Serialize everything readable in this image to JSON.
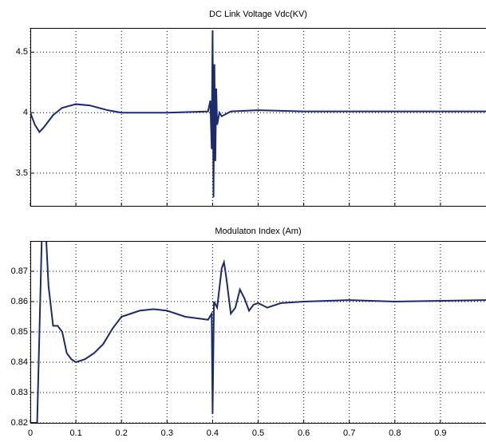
{
  "chart_data": [
    {
      "type": "line",
      "title": "DC Link Voltage Vdc(KV)",
      "x": [
        0,
        0.01,
        0.02,
        0.03,
        0.05,
        0.07,
        0.1,
        0.13,
        0.17,
        0.2,
        0.3,
        0.39,
        0.395,
        0.398,
        0.4,
        0.402,
        0.404,
        0.406,
        0.408,
        0.41,
        0.415,
        0.42,
        0.44,
        0.5,
        0.6,
        1.0
      ],
      "series": [
        {
          "name": "Vdc",
          "color": "#1c2a6e",
          "values": [
            4.0,
            3.9,
            3.84,
            3.88,
            3.98,
            4.04,
            4.07,
            4.06,
            4.02,
            4.0,
            4.0,
            4.01,
            4.1,
            3.7,
            4.68,
            3.3,
            4.4,
            3.6,
            4.2,
            3.9,
            4.0,
            3.97,
            4.01,
            4.02,
            4.01,
            4.01
          ]
        }
      ],
      "xlim": [
        0,
        1
      ],
      "xticks": [
        0,
        0.1,
        0.2,
        0.3,
        0.4,
        0.5,
        0.6,
        0.7,
        0.8,
        0.9
      ],
      "show_xtick_labels": false,
      "ylim": [
        3.23,
        4.7
      ],
      "yticks": [
        3.5,
        4,
        4.5
      ],
      "grid": true
    },
    {
      "type": "line",
      "title": "Modulaton Index (Am)",
      "x": [
        0,
        0.015,
        0.02,
        0.025,
        0.035,
        0.04,
        0.05,
        0.06,
        0.07,
        0.08,
        0.09,
        0.1,
        0.12,
        0.14,
        0.16,
        0.18,
        0.2,
        0.24,
        0.27,
        0.3,
        0.34,
        0.39,
        0.398,
        0.4,
        0.403,
        0.41,
        0.42,
        0.425,
        0.43,
        0.44,
        0.45,
        0.46,
        0.47,
        0.48,
        0.49,
        0.5,
        0.52,
        0.55,
        0.6,
        0.7,
        0.8,
        1.0
      ],
      "series": [
        {
          "name": "Am",
          "color": "#1c2a6e",
          "values": [
            0.82,
            0.82,
            0.85,
            0.88,
            0.88,
            0.865,
            0.852,
            0.852,
            0.85,
            0.843,
            0.841,
            0.84,
            0.841,
            0.843,
            0.846,
            0.851,
            0.855,
            0.857,
            0.8575,
            0.857,
            0.855,
            0.854,
            0.856,
            0.823,
            0.86,
            0.858,
            0.871,
            0.873,
            0.868,
            0.856,
            0.858,
            0.864,
            0.861,
            0.857,
            0.859,
            0.8595,
            0.858,
            0.8595,
            0.86,
            0.8605,
            0.86,
            0.8605
          ]
        }
      ],
      "xlim": [
        0,
        1
      ],
      "xticks": [
        0,
        0.1,
        0.2,
        0.3,
        0.4,
        0.5,
        0.6,
        0.7,
        0.8,
        0.9
      ],
      "show_xtick_labels": true,
      "ylim": [
        0.82,
        0.88
      ],
      "yticks": [
        0.82,
        0.83,
        0.84,
        0.85,
        0.86,
        0.87
      ],
      "grid": true
    }
  ]
}
